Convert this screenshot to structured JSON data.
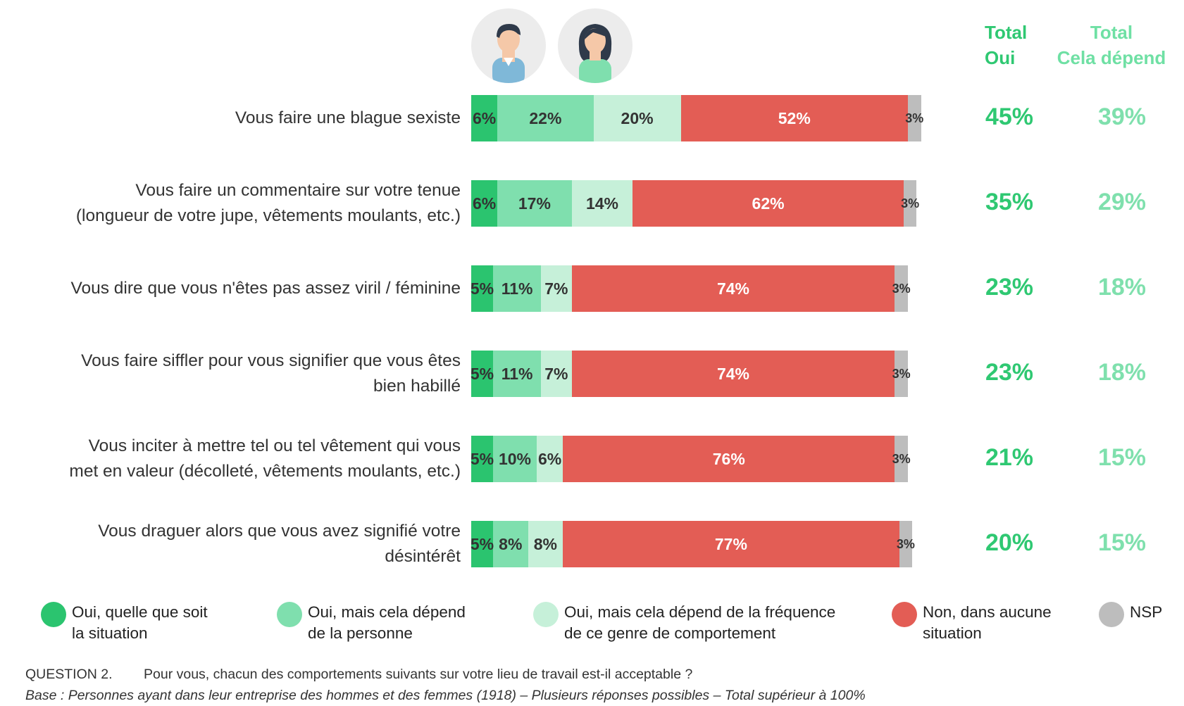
{
  "header": {
    "total_oui": "Total\nOui",
    "total_depend": "Total\nCela dépend"
  },
  "chart_data": {
    "type": "bar",
    "orientation": "horizontal",
    "stacked": true,
    "categories": [
      "Vous faire une blague sexiste",
      "Vous faire un commentaire sur votre tenue\n(longueur de votre jupe, vêtements moulants, etc.)",
      "Vous dire que vous n'êtes pas assez viril / féminine",
      "Vous faire siffler pour vous signifier que vous êtes\nbien habillé",
      "Vous inciter à mettre tel ou tel vêtement qui vous\nmet en valeur (décolleté, vêtements moulants, etc.)",
      "Vous draguer alors que vous avez signifié votre\ndésintérêt"
    ],
    "series": [
      {
        "name": "Oui, quelle que soit\nla situation",
        "color": "#2bc46f",
        "values": [
          6,
          6,
          5,
          5,
          5,
          5
        ]
      },
      {
        "name": "Oui, mais cela dépend\nde la personne",
        "color": "#7fdfae",
        "values": [
          22,
          17,
          11,
          11,
          10,
          8
        ]
      },
      {
        "name": "Oui, mais cela dépend de la fréquence\nde ce genre de comportement",
        "color": "#c6f0d9",
        "values": [
          20,
          14,
          7,
          7,
          6,
          8
        ]
      },
      {
        "name": "Non, dans aucune\nsituation",
        "color": "#e35d55",
        "values": [
          52,
          62,
          74,
          74,
          76,
          77
        ]
      },
      {
        "name": "NSP",
        "color": "#bdbdbd",
        "values": [
          3,
          3,
          3,
          3,
          3,
          3
        ]
      }
    ],
    "total_oui": [
      "45%",
      "35%",
      "23%",
      "23%",
      "21%",
      "20%"
    ],
    "total_depend": [
      "39%",
      "29%",
      "18%",
      "18%",
      "15%",
      "15%"
    ],
    "legend_position": "bottom"
  },
  "footer": {
    "question_number": "QUESTION 2.",
    "question_text": "Pour vous, chacun des comportements suivants sur votre lieu de travail est-il acceptable ?",
    "base": "Base : Personnes ayant dans leur entreprise des hommes et des femmes (1918) – Plusieurs réponses possibles – Total supérieur à 100%"
  },
  "icons": [
    "man-avatar-icon",
    "woman-avatar-icon"
  ]
}
